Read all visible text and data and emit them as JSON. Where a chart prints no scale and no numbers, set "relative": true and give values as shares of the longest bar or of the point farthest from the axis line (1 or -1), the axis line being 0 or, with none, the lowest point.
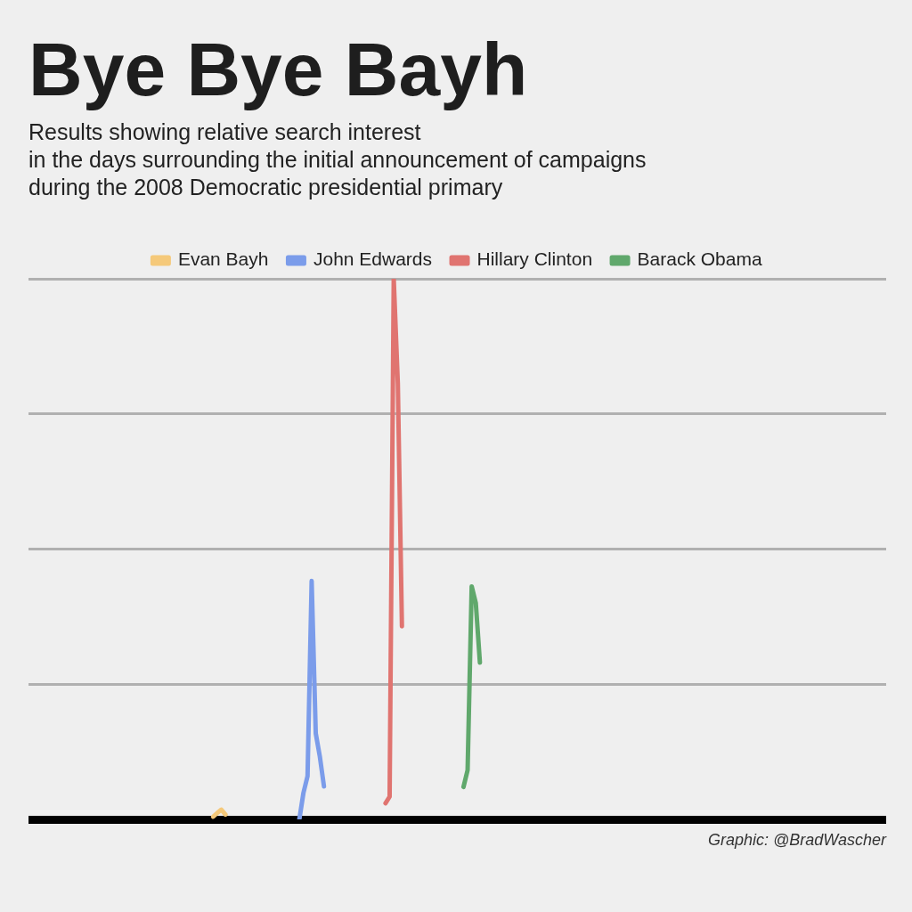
{
  "chart_data": {
    "type": "line",
    "title": "Bye Bye Bayh",
    "subtitle": "Results showing relative search interest\nin the days surrounding the initial announcement of campaigns\nduring the 2008 Democratic presidential primary",
    "relative": true,
    "grid": "y",
    "legend": "top",
    "annotations": [
      "Graphic: @BradWascher"
    ],
    "categories": [
      null,
      null,
      null,
      null,
      null,
      null,
      null,
      null,
      null,
      null,
      null,
      null,
      null,
      null,
      null,
      null,
      null,
      null,
      null,
      null,
      null,
      null,
      null,
      null,
      null,
      null,
      null,
      null,
      null,
      null,
      null,
      null,
      null,
      null,
      null,
      null,
      null,
      null,
      null,
      null,
      null,
      null,
      null,
      null,
      null,
      null,
      null,
      null,
      null,
      null,
      null,
      null,
      null,
      null,
      null,
      null,
      null,
      null,
      null,
      null,
      null,
      null,
      null,
      null,
      null,
      null,
      null,
      null,
      null,
      null,
      null,
      null,
      null,
      null,
      null,
      null,
      null,
      null,
      null,
      null,
      null,
      null,
      null,
      null,
      null,
      null,
      null,
      null,
      null,
      null,
      null,
      null,
      null,
      null,
      null,
      null,
      null,
      null,
      null,
      null,
      null,
      null,
      null,
      null,
      null,
      null,
      null,
      null,
      null,
      null,
      null,
      null,
      null,
      null,
      null,
      null,
      null,
      null,
      null,
      null,
      null,
      null,
      null,
      null,
      null,
      null,
      null,
      null,
      null,
      null,
      null,
      null,
      null,
      null,
      null,
      null,
      null,
      null,
      null,
      null,
      null,
      null,
      null,
      null,
      null,
      null,
      null,
      null,
      null,
      null,
      null,
      null,
      null,
      null,
      null,
      null,
      null,
      null,
      null,
      null,
      null,
      null,
      null,
      null,
      null,
      null,
      null,
      null,
      null,
      null,
      null,
      null,
      null,
      null,
      null,
      null,
      null,
      null,
      null,
      null,
      null,
      null,
      null,
      null,
      null,
      null,
      null,
      null,
      null,
      null,
      null,
      null,
      null,
      null,
      null,
      null,
      null,
      null,
      null,
      null,
      null,
      null,
      null,
      null,
      null,
      null,
      null,
      null,
      null,
      null
    ],
    "series": [
      {
        "name": "Evan Bayh",
        "color": "#f5c97a",
        "values": [
          null,
          null,
          null,
          null,
          null,
          null,
          null,
          null,
          null,
          null,
          null,
          null,
          null,
          null,
          null,
          null,
          null,
          null,
          null,
          null,
          null,
          null,
          null,
          null,
          null,
          null,
          null,
          null,
          null,
          null,
          null,
          null,
          null,
          null,
          null,
          null,
          null,
          null,
          null,
          null,
          null,
          null,
          null,
          null,
          null,
          0.005,
          0.012,
          0.018,
          0.009,
          null,
          null,
          null,
          null,
          null,
          null,
          null,
          null,
          null,
          null,
          null,
          null,
          null,
          null,
          null,
          null,
          null,
          null,
          null,
          null,
          null,
          null,
          null,
          null,
          null,
          null,
          null,
          null,
          null,
          null,
          null,
          null,
          null,
          null,
          null,
          null,
          null,
          null,
          null,
          null,
          null,
          null,
          null,
          null,
          null,
          null,
          null,
          null,
          null,
          null,
          null,
          null,
          null,
          null,
          null,
          null,
          null,
          null,
          null,
          null,
          null,
          null,
          null,
          null,
          null,
          null,
          null,
          null,
          null,
          null,
          null,
          null,
          null,
          null,
          null,
          null,
          null,
          null,
          null,
          null,
          null,
          null,
          null,
          null,
          null,
          null,
          null,
          null,
          null,
          null,
          null,
          null,
          null,
          null,
          null,
          null,
          null,
          null,
          null,
          null,
          null,
          null,
          null,
          null,
          null,
          null,
          null,
          null,
          null,
          null,
          null,
          null,
          null,
          null,
          null,
          null,
          null,
          null,
          null,
          null,
          null,
          null,
          null,
          null,
          null,
          null,
          null,
          null,
          null,
          null,
          null,
          null,
          null,
          null,
          null,
          null,
          null,
          null,
          null,
          null,
          null,
          null,
          null,
          null,
          null,
          null,
          null,
          null,
          null,
          null,
          null,
          null,
          null,
          null,
          null,
          null,
          null,
          null,
          null,
          null,
          null
        ]
      },
      {
        "name": "John Edwards",
        "color": "#7b9cea",
        "values": [
          null,
          null,
          null,
          null,
          null,
          null,
          null,
          null,
          null,
          null,
          null,
          null,
          null,
          null,
          null,
          null,
          null,
          null,
          null,
          null,
          null,
          null,
          null,
          null,
          null,
          null,
          null,
          null,
          null,
          null,
          null,
          null,
          null,
          null,
          null,
          null,
          null,
          null,
          null,
          null,
          null,
          null,
          null,
          null,
          null,
          null,
          null,
          null,
          null,
          null,
          null,
          null,
          null,
          null,
          null,
          null,
          null,
          null,
          null,
          null,
          null,
          null,
          null,
          null,
          null,
          null,
          0,
          0.049,
          0.08,
          0.441,
          0.159,
          0.116,
          0.061,
          null,
          null,
          null,
          null,
          null,
          null,
          null,
          null,
          null,
          null,
          null,
          null,
          null,
          null,
          null,
          null,
          null,
          null,
          null,
          null,
          null,
          null,
          null,
          null,
          null,
          null,
          null,
          null,
          null,
          null,
          null,
          null,
          null,
          null,
          null,
          null,
          null,
          null,
          null,
          null,
          null,
          null,
          null,
          null,
          null,
          null,
          null,
          null,
          null,
          null,
          null,
          null,
          null,
          null,
          null,
          null,
          null,
          null,
          null,
          null,
          null,
          null,
          null,
          null,
          null,
          null,
          null,
          null,
          null,
          null,
          null,
          null,
          null,
          null,
          null,
          null,
          null,
          null,
          null,
          null,
          null,
          null,
          null,
          null,
          null,
          null,
          null,
          null,
          null,
          null,
          null,
          null,
          null,
          null,
          null,
          null,
          null,
          null,
          null,
          null,
          null,
          null,
          null,
          null,
          null,
          null,
          null,
          null,
          null,
          null,
          null,
          null,
          null,
          null,
          null,
          null,
          null,
          null,
          null,
          null,
          null,
          null,
          null,
          null,
          null,
          null,
          null,
          null,
          null,
          null,
          null,
          null,
          null,
          null,
          null,
          null,
          null
        ]
      },
      {
        "name": "Hillary Clinton",
        "color": "#e07470",
        "values": [
          null,
          null,
          null,
          null,
          null,
          null,
          null,
          null,
          null,
          null,
          null,
          null,
          null,
          null,
          null,
          null,
          null,
          null,
          null,
          null,
          null,
          null,
          null,
          null,
          null,
          null,
          null,
          null,
          null,
          null,
          null,
          null,
          null,
          null,
          null,
          null,
          null,
          null,
          null,
          null,
          null,
          null,
          null,
          null,
          null,
          null,
          null,
          null,
          null,
          null,
          null,
          null,
          null,
          null,
          null,
          null,
          null,
          null,
          null,
          null,
          null,
          null,
          null,
          null,
          null,
          null,
          null,
          null,
          null,
          null,
          null,
          null,
          null,
          null,
          null,
          null,
          null,
          null,
          null,
          null,
          null,
          null,
          null,
          null,
          null,
          null,
          null,
          0.03,
          0.042,
          1,
          0.807,
          0.357,
          null,
          null,
          null,
          null,
          null,
          null,
          null,
          null,
          null,
          null,
          null,
          null,
          null,
          null,
          null,
          null,
          null,
          null,
          null,
          null,
          null,
          null,
          null,
          null,
          null,
          null,
          null,
          null,
          null,
          null,
          null,
          null,
          null,
          null,
          null,
          null,
          null,
          null,
          null,
          null,
          null,
          null,
          null,
          null,
          null,
          null,
          null,
          null,
          null,
          null,
          null,
          null,
          null,
          null,
          null,
          null,
          null,
          null,
          null,
          null,
          null,
          null,
          null,
          null,
          null,
          null,
          null,
          null,
          null,
          null,
          null,
          null,
          null,
          null,
          null,
          null,
          null,
          null,
          null,
          null,
          null,
          null,
          null,
          null,
          null,
          null,
          null,
          null,
          null,
          null,
          null,
          null,
          null,
          null,
          null,
          null,
          null,
          null,
          null,
          null,
          null,
          null,
          null,
          null,
          null,
          null,
          null,
          null,
          null,
          null,
          null,
          null,
          null,
          null,
          null,
          null,
          null,
          null
        ]
      },
      {
        "name": "Barack Obama",
        "color": "#60a86c",
        "values": [
          null,
          null,
          null,
          null,
          null,
          null,
          null,
          null,
          null,
          null,
          null,
          null,
          null,
          null,
          null,
          null,
          null,
          null,
          null,
          null,
          null,
          null,
          null,
          null,
          null,
          null,
          null,
          null,
          null,
          null,
          null,
          null,
          null,
          null,
          null,
          null,
          null,
          null,
          null,
          null,
          null,
          null,
          null,
          null,
          null,
          null,
          null,
          null,
          null,
          null,
          null,
          null,
          null,
          null,
          null,
          null,
          null,
          null,
          null,
          null,
          null,
          null,
          null,
          null,
          null,
          null,
          null,
          null,
          null,
          null,
          null,
          null,
          null,
          null,
          null,
          null,
          null,
          null,
          null,
          null,
          null,
          null,
          null,
          null,
          null,
          null,
          null,
          null,
          null,
          null,
          null,
          null,
          null,
          null,
          null,
          null,
          null,
          null,
          null,
          null,
          null,
          null,
          null,
          null,
          null,
          null,
          0.06,
          0.091,
          0.431,
          0.4,
          0.29,
          null,
          null,
          null,
          null,
          null,
          null,
          null,
          null,
          null,
          null,
          null,
          null,
          null,
          null,
          null,
          null,
          null,
          null,
          null,
          null,
          null,
          null,
          null,
          null,
          null,
          null,
          null,
          null,
          null,
          null,
          null,
          null,
          null,
          null,
          null,
          null,
          null,
          null,
          null,
          null,
          null,
          null,
          null,
          null,
          null,
          null,
          null,
          null,
          null,
          null,
          null,
          null,
          null,
          null,
          null,
          null,
          null,
          null,
          null,
          null,
          null,
          null,
          null,
          null,
          null,
          null,
          null,
          null,
          null,
          null,
          null,
          null,
          null,
          null,
          null,
          null,
          null,
          null,
          null,
          null,
          null,
          null,
          null,
          null,
          null,
          null,
          null,
          null,
          null,
          null,
          null,
          null,
          null,
          null,
          null,
          null,
          null,
          null,
          null
        ]
      }
    ]
  }
}
